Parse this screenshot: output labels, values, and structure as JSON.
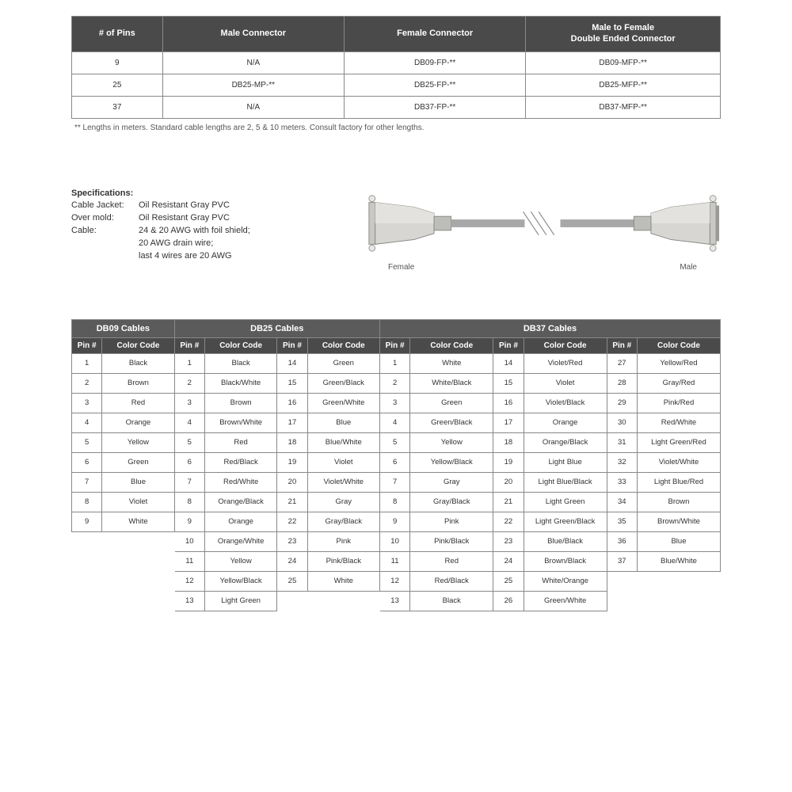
{
  "top_table": {
    "headers": [
      "# of Pins",
      "Male Connector",
      "Female Connector",
      "Male to Female\nDouble Ended Connector"
    ],
    "rows": [
      [
        "9",
        "N/A",
        "DB09-FP-**",
        "DB09-MFP-**"
      ],
      [
        "25",
        "DB25-MP-**",
        "DB25-FP-**",
        "DB25-MFP-**"
      ],
      [
        "37",
        "N/A",
        "DB37-FP-**",
        "DB37-MFP-**"
      ]
    ]
  },
  "footnote": "** Lengths in meters. Standard cable lengths are 2, 5 & 10 meters. Consult factory for other lengths.",
  "specs": {
    "title": "Specifications:",
    "lines": [
      {
        "label": "Cable Jacket:",
        "value": "Oil Resistant Gray PVC"
      },
      {
        "label": "Over mold:",
        "value": "Oil Resistant Gray PVC"
      },
      {
        "label": "Cable:",
        "value": "24 & 20 AWG with foil shield;\n20 AWG drain wire;\nlast 4 wires are 20 AWG"
      }
    ]
  },
  "illus": {
    "left_label": "Female",
    "right_label": "Male"
  },
  "cc": {
    "group_headers": [
      {
        "label": "DB09 Cables",
        "span": 2
      },
      {
        "label": "DB25 Cables",
        "span": 4
      },
      {
        "label": "DB37 Cables",
        "span": 6
      }
    ],
    "sub_headers": [
      "Pin #",
      "Color Code",
      "Pin #",
      "Color Code",
      "Pin #",
      "Color Code",
      "Pin #",
      "Color Code",
      "Pin #",
      "Color Code",
      "Pin #",
      "Color Code"
    ],
    "rows": [
      [
        "1",
        "Black",
        "1",
        "Black",
        "14",
        "Green",
        "1",
        "White",
        "14",
        "Violet/Red",
        "27",
        "Yellow/Red"
      ],
      [
        "2",
        "Brown",
        "2",
        "Black/White",
        "15",
        "Green/Black",
        "2",
        "White/Black",
        "15",
        "Violet",
        "28",
        "Gray/Red"
      ],
      [
        "3",
        "Red",
        "3",
        "Brown",
        "16",
        "Green/White",
        "3",
        "Green",
        "16",
        "Violet/Black",
        "29",
        "Pink/Red"
      ],
      [
        "4",
        "Orange",
        "4",
        "Brown/White",
        "17",
        "Blue",
        "4",
        "Green/Black",
        "17",
        "Orange",
        "30",
        "Red/White"
      ],
      [
        "5",
        "Yellow",
        "5",
        "Red",
        "18",
        "Blue/White",
        "5",
        "Yellow",
        "18",
        "Orange/Black",
        "31",
        "Light Green/Red"
      ],
      [
        "6",
        "Green",
        "6",
        "Red/Black",
        "19",
        "Violet",
        "6",
        "Yellow/Black",
        "19",
        "Light Blue",
        "32",
        "Violet/White"
      ],
      [
        "7",
        "Blue",
        "7",
        "Red/White",
        "20",
        "Violet/White",
        "7",
        "Gray",
        "20",
        "Light Blue/Black",
        "33",
        "Light Blue/Red"
      ],
      [
        "8",
        "Violet",
        "8",
        "Orange/Black",
        "21",
        "Gray",
        "8",
        "Gray/Black",
        "21",
        "Light Green",
        "34",
        "Brown"
      ],
      [
        "9",
        "White",
        "9",
        "Orange",
        "22",
        "Gray/Black",
        "9",
        "Pink",
        "22",
        "Light Green/Black",
        "35",
        "Brown/White"
      ],
      [
        "",
        "",
        "10",
        "Orange/White",
        "23",
        "Pink",
        "10",
        "Pink/Black",
        "23",
        "Blue/Black",
        "36",
        "Blue"
      ],
      [
        "",
        "",
        "11",
        "Yellow",
        "24",
        "Pink/Black",
        "11",
        "Red",
        "24",
        "Brown/Black",
        "37",
        "Blue/White"
      ],
      [
        "",
        "",
        "12",
        "Yellow/Black",
        "25",
        "White",
        "12",
        "Red/Black",
        "25",
        "White/Orange",
        "",
        ""
      ],
      [
        "",
        "",
        "13",
        "Light Green",
        "",
        "",
        "13",
        "Black",
        "26",
        "Green/White",
        "",
        ""
      ]
    ]
  },
  "colors": {
    "header_bg": "#4a4a4a",
    "group_bg": "#5b5b5b",
    "border": "#888888",
    "text": "#333333",
    "connector_body": "#d7d6d2",
    "connector_shadow": "#b7b6b2",
    "cable_gray": "#a8a8a8"
  }
}
